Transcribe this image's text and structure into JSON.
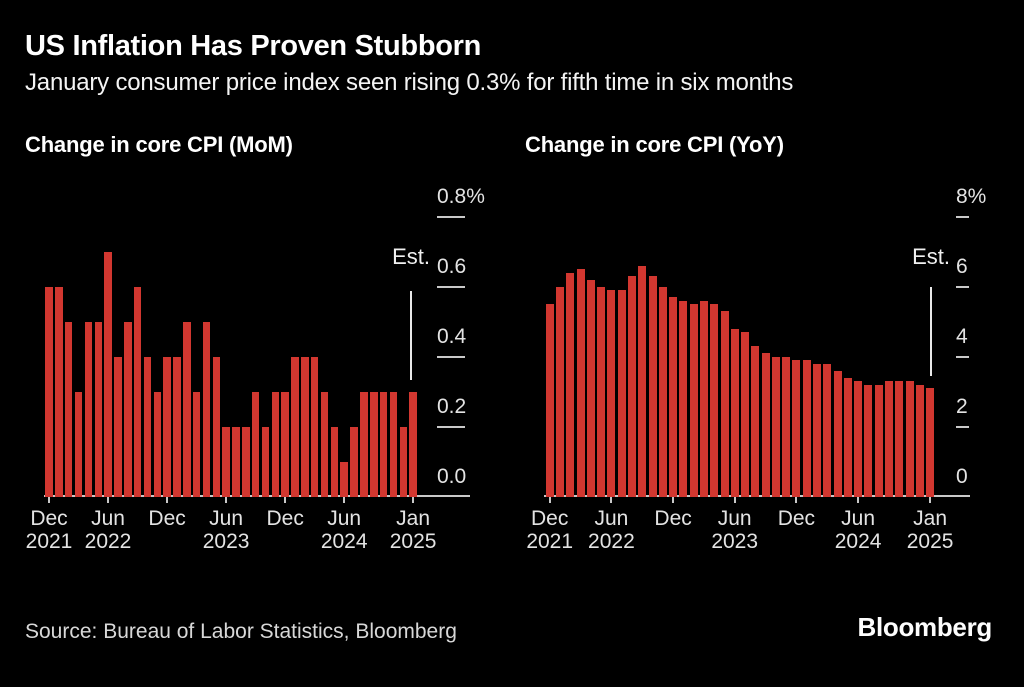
{
  "header": {
    "title": "US Inflation Has Proven Stubborn",
    "subtitle": "January consumer price index seen rising 0.3% for fifth time in six months"
  },
  "footer": {
    "source": "Source: Bureau of Labor Statistics, Bloomberg",
    "logo": "Bloomberg"
  },
  "colors": {
    "background": "#000000",
    "bar_red": "#d23730",
    "title_text": "#ffffff",
    "axis_text": "#e3e3e3",
    "axis_line": "#c9c9c9",
    "est_line": "#e8e8e8"
  },
  "chart_data": [
    {
      "id": "mom",
      "type": "bar",
      "title": "Change in core CPI (MoM)",
      "ylim": [
        0,
        0.8
      ],
      "grid": false,
      "legend": "none",
      "est_label": "Est.",
      "est_index": 37,
      "yticks": [
        {
          "label": "0.8%",
          "value": 0.8
        },
        {
          "label": "0.6",
          "value": 0.6
        },
        {
          "label": "0.4",
          "value": 0.4
        },
        {
          "label": "0.2",
          "value": 0.2
        },
        {
          "label": "0.0",
          "value": 0.0
        }
      ],
      "xticks": [
        {
          "month": "Dec",
          "year": "2021",
          "index": 0
        },
        {
          "month": "Jun",
          "year": "2022",
          "index": 6
        },
        {
          "month": "Dec",
          "year": "",
          "index": 12
        },
        {
          "month": "Jun",
          "year": "2023",
          "index": 18
        },
        {
          "month": "Dec",
          "year": "",
          "index": 24
        },
        {
          "month": "Jun",
          "year": "2024",
          "index": 30
        },
        {
          "month": "Jan",
          "year": "2025",
          "index": 37
        }
      ],
      "months": [
        "Dec 2021",
        "Jan 2022",
        "Feb 2022",
        "Mar 2022",
        "Apr 2022",
        "May 2022",
        "Jun 2022",
        "Jul 2022",
        "Aug 2022",
        "Sep 2022",
        "Oct 2022",
        "Nov 2022",
        "Dec 2022",
        "Jan 2023",
        "Feb 2023",
        "Mar 2023",
        "Apr 2023",
        "May 2023",
        "Jun 2023",
        "Jul 2023",
        "Aug 2023",
        "Sep 2023",
        "Oct 2023",
        "Nov 2023",
        "Dec 2023",
        "Jan 2024",
        "Feb 2024",
        "Mar 2024",
        "Apr 2024",
        "May 2024",
        "Jun 2024",
        "Jul 2024",
        "Aug 2024",
        "Sep 2024",
        "Oct 2024",
        "Nov 2024",
        "Dec 2024",
        "Jan 2025"
      ],
      "values": [
        0.6,
        0.6,
        0.5,
        0.3,
        0.5,
        0.5,
        0.7,
        0.4,
        0.5,
        0.6,
        0.4,
        0.3,
        0.4,
        0.4,
        0.5,
        0.3,
        0.5,
        0.4,
        0.2,
        0.2,
        0.2,
        0.3,
        0.2,
        0.3,
        0.3,
        0.4,
        0.4,
        0.4,
        0.3,
        0.2,
        0.1,
        0.2,
        0.3,
        0.3,
        0.3,
        0.3,
        0.2,
        0.3
      ]
    },
    {
      "id": "yoy",
      "type": "bar",
      "title": "Change in core CPI (YoY)",
      "ylim": [
        0,
        8
      ],
      "grid": false,
      "legend": "none",
      "est_label": "Est.",
      "est_index": 37,
      "yticks": [
        {
          "label": "8%",
          "value": 8
        },
        {
          "label": "6",
          "value": 6
        },
        {
          "label": "4",
          "value": 4
        },
        {
          "label": "2",
          "value": 2
        },
        {
          "label": "0",
          "value": 0
        }
      ],
      "xticks": [
        {
          "month": "Dec",
          "year": "2021",
          "index": 0
        },
        {
          "month": "Jun",
          "year": "2022",
          "index": 6
        },
        {
          "month": "Dec",
          "year": "",
          "index": 12
        },
        {
          "month": "Jun",
          "year": "2023",
          "index": 18
        },
        {
          "month": "Dec",
          "year": "",
          "index": 24
        },
        {
          "month": "Jun",
          "year": "2024",
          "index": 30
        },
        {
          "month": "Jan",
          "year": "2025",
          "index": 37
        }
      ],
      "months": [
        "Dec 2021",
        "Jan 2022",
        "Feb 2022",
        "Mar 2022",
        "Apr 2022",
        "May 2022",
        "Jun 2022",
        "Jul 2022",
        "Aug 2022",
        "Sep 2022",
        "Oct 2022",
        "Nov 2022",
        "Dec 2022",
        "Jan 2023",
        "Feb 2023",
        "Mar 2023",
        "Apr 2023",
        "May 2023",
        "Jun 2023",
        "Jul 2023",
        "Aug 2023",
        "Sep 2023",
        "Oct 2023",
        "Nov 2023",
        "Dec 2023",
        "Jan 2024",
        "Feb 2024",
        "Mar 2024",
        "Apr 2024",
        "May 2024",
        "Jun 2024",
        "Jul 2024",
        "Aug 2024",
        "Sep 2024",
        "Oct 2024",
        "Nov 2024",
        "Dec 2024",
        "Jan 2025"
      ],
      "values": [
        5.5,
        6.0,
        6.4,
        6.5,
        6.2,
        6.0,
        5.9,
        5.9,
        6.3,
        6.6,
        6.3,
        6.0,
        5.7,
        5.6,
        5.5,
        5.6,
        5.5,
        5.3,
        4.8,
        4.7,
        4.3,
        4.1,
        4.0,
        4.0,
        3.9,
        3.9,
        3.8,
        3.8,
        3.6,
        3.4,
        3.3,
        3.2,
        3.2,
        3.3,
        3.3,
        3.3,
        3.2,
        3.1
      ]
    }
  ]
}
